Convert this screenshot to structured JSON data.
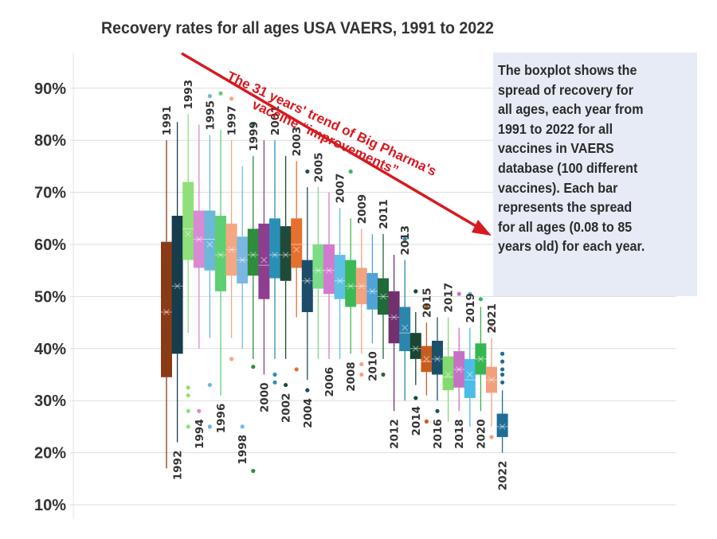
{
  "title": "Recovery rates for all ages USA VAERS, 1991 to 2022",
  "annotation_lines": [
    "The boxplot shows the",
    "spread of recovery for",
    "all ages, each year from",
    "1991 to 2022 for all",
    "vaccines in VAERS",
    "database (100 different",
    "vaccines). Each bar",
    "represents the spread",
    "for all ages (0.08 to 85",
    "years old) for each year."
  ],
  "trend_label_lines": [
    "The 31 years' trend of Big Pharma's",
    "vaccine “improvements”"
  ],
  "colors": {
    "trend": "#d71920",
    "grid": "#dddddd",
    "tick_text": "#333333",
    "annotation_bg": "#e6ebf6"
  },
  "chart_data": {
    "type": "boxplot",
    "title": "Recovery rates for all ages USA VAERS, 1991 to 2022",
    "xlabel": "",
    "ylabel": "",
    "ylim": [
      8,
      95
    ],
    "yticks": [
      10,
      20,
      30,
      40,
      50,
      60,
      70,
      80,
      90
    ],
    "ytick_labels": [
      "10%",
      "20%",
      "30%",
      "40%",
      "50%",
      "60%",
      "70%",
      "80%",
      "90%"
    ],
    "grid": true,
    "series": [
      {
        "year": "1991",
        "color": "#8b3a16",
        "min": 17,
        "q1": 34.5,
        "median": 47,
        "q3": 60.5,
        "max": 80,
        "mean": 47,
        "outliers": []
      },
      {
        "year": "1992",
        "color": "#173c4c",
        "min": 22,
        "q1": 39,
        "median": 52,
        "q3": 65.5,
        "max": 83.5,
        "mean": 52,
        "outliers": []
      },
      {
        "year": "1993",
        "color": "#8fe07a",
        "min": 43,
        "q1": 57,
        "median": 63,
        "q3": 72,
        "max": 85,
        "mean": 62,
        "outliers": [
          25,
          28,
          31,
          32.5
        ]
      },
      {
        "year": "1994",
        "color": "#d98ad2",
        "min": 40,
        "q1": 55.5,
        "median": 61,
        "q3": 66.5,
        "max": 83,
        "mean": 61,
        "outliers": [
          28
        ]
      },
      {
        "year": "1995",
        "color": "#6cb8d8",
        "min": 42,
        "q1": 55,
        "median": 61,
        "q3": 66.5,
        "max": 81,
        "mean": 60,
        "outliers": [
          25,
          33,
          88.5
        ]
      },
      {
        "year": "1996",
        "color": "#5ecf72",
        "min": 31,
        "q1": 51,
        "median": 58,
        "q3": 65.5,
        "max": 82,
        "mean": 58,
        "outliers": [
          89
        ]
      },
      {
        "year": "1997",
        "color": "#f3a883",
        "min": 42,
        "q1": 54,
        "median": 59,
        "q3": 64,
        "max": 80,
        "mean": 59,
        "outliers": [
          38,
          88
        ]
      },
      {
        "year": "1998",
        "color": "#7ab7e3",
        "min": 40,
        "q1": 52.5,
        "median": 57,
        "q3": 61.5,
        "max": 75,
        "mean": 57,
        "outliers": [
          25
        ]
      },
      {
        "year": "1999",
        "color": "#2e8c3e",
        "min": 38,
        "q1": 54,
        "median": 58,
        "q3": 63,
        "max": 77,
        "mean": 58,
        "outliers": [
          16.5,
          36.5,
          83
        ]
      },
      {
        "year": "2000",
        "color": "#8e3d8f",
        "min": 35,
        "q1": 49.5,
        "median": 56,
        "q3": 64,
        "max": 80,
        "mean": 57,
        "outliers": []
      },
      {
        "year": "2001",
        "color": "#2a8fb5",
        "min": 38,
        "q1": 53.5,
        "median": 58,
        "q3": 65,
        "max": 80,
        "mean": 58,
        "outliers": [
          33.5,
          35
        ]
      },
      {
        "year": "2002",
        "color": "#1f4a3a",
        "min": 38,
        "q1": 53,
        "median": 58,
        "q3": 63.5,
        "max": 77,
        "mean": 58,
        "outliers": [
          33
        ]
      },
      {
        "year": "2003",
        "color": "#e7702e",
        "min": 46,
        "q1": 55.5,
        "median": 60,
        "q3": 65,
        "max": 76,
        "mean": 59,
        "outliers": [
          36
        ]
      },
      {
        "year": "2004",
        "color": "#1c4c67",
        "min": 34,
        "q1": 47,
        "median": 53,
        "q3": 57,
        "max": 71,
        "mean": 53,
        "outliers": [
          32,
          74
        ]
      },
      {
        "year": "2005",
        "color": "#7ddc86",
        "min": 38,
        "q1": 51.5,
        "median": 55,
        "q3": 60,
        "max": 71,
        "mean": 55,
        "outliers": []
      },
      {
        "year": "2006",
        "color": "#d17ad0",
        "min": 38,
        "q1": 50.5,
        "median": 55,
        "q3": 60,
        "max": 70,
        "mean": 55,
        "outliers": []
      },
      {
        "year": "2007",
        "color": "#5ec0e2",
        "min": 38,
        "q1": 49.5,
        "median": 53,
        "q3": 58,
        "max": 67,
        "mean": 53,
        "outliers": []
      },
      {
        "year": "2008",
        "color": "#3cb954",
        "min": 39,
        "q1": 48,
        "median": 52,
        "q3": 57,
        "max": 65,
        "mean": 52,
        "outliers": [
          74
        ]
      },
      {
        "year": "2009",
        "color": "#f2a37f",
        "min": 39,
        "q1": 48.5,
        "median": 52,
        "q3": 55.5,
        "max": 63,
        "mean": 52,
        "outliers": [
          35,
          37
        ]
      },
      {
        "year": "2010",
        "color": "#4fa3d9",
        "min": 41,
        "q1": 47.5,
        "median": 51,
        "q3": 54.5,
        "max": 62,
        "mean": 51,
        "outliers": []
      },
      {
        "year": "2011",
        "color": "#206a3a",
        "min": 38,
        "q1": 46.5,
        "median": 50,
        "q3": 53.5,
        "max": 62,
        "mean": 50,
        "outliers": [
          35
        ]
      },
      {
        "year": "2012",
        "color": "#72306f",
        "min": 28,
        "q1": 41,
        "median": 46,
        "q3": 51,
        "max": 58,
        "mean": 46,
        "outliers": []
      },
      {
        "year": "2013",
        "color": "#2b86ad",
        "min": 30,
        "q1": 39.5,
        "median": 43,
        "q3": 48,
        "max": 57,
        "mean": 44,
        "outliers": [
          61
        ]
      },
      {
        "year": "2014",
        "color": "#184834",
        "min": 33,
        "q1": 38,
        "median": 40,
        "q3": 43,
        "max": 47,
        "mean": 40,
        "outliers": [
          30.5,
          51
        ]
      },
      {
        "year": "2015",
        "color": "#c85c1e",
        "min": 31,
        "q1": 35.5,
        "median": 37.5,
        "q3": 40.5,
        "max": 45,
        "mean": 38,
        "outliers": [
          26,
          48
        ]
      },
      {
        "year": "2016",
        "color": "#1b506b",
        "min": 30,
        "q1": 35,
        "median": 38,
        "q3": 41.5,
        "max": 46,
        "mean": 38,
        "outliers": [
          28
        ]
      },
      {
        "year": "2017",
        "color": "#82db6e",
        "min": 26,
        "q1": 32,
        "median": 34.5,
        "q3": 38.5,
        "max": 46,
        "mean": 35,
        "outliers": []
      },
      {
        "year": "2018",
        "color": "#c870c6",
        "min": 28,
        "q1": 32.5,
        "median": 36,
        "q3": 39.5,
        "max": 44,
        "mean": 36,
        "outliers": [
          50.5
        ]
      },
      {
        "year": "2019",
        "color": "#4cbde6",
        "min": 25,
        "q1": 30.5,
        "median": 34,
        "q3": 38,
        "max": 44,
        "mean": 35,
        "outliers": [
          50.5
        ]
      },
      {
        "year": "2020",
        "color": "#36b550",
        "min": 28,
        "q1": 35,
        "median": 38,
        "q3": 41,
        "max": 48,
        "mean": 38,
        "outliers": [
          49.5
        ]
      },
      {
        "year": "2021",
        "color": "#f2a07c",
        "min": 25,
        "q1": 31.5,
        "median": 34,
        "q3": 36.5,
        "max": 42,
        "mean": 34,
        "outliers": [
          23,
          44.5
        ]
      },
      {
        "year": "2022",
        "color": "#206d95",
        "min": 20,
        "q1": 23,
        "median": 25,
        "q3": 27.5,
        "max": 32,
        "mean": 25,
        "outliers": [
          33.5,
          35,
          36,
          37.5,
          39
        ]
      }
    ]
  }
}
